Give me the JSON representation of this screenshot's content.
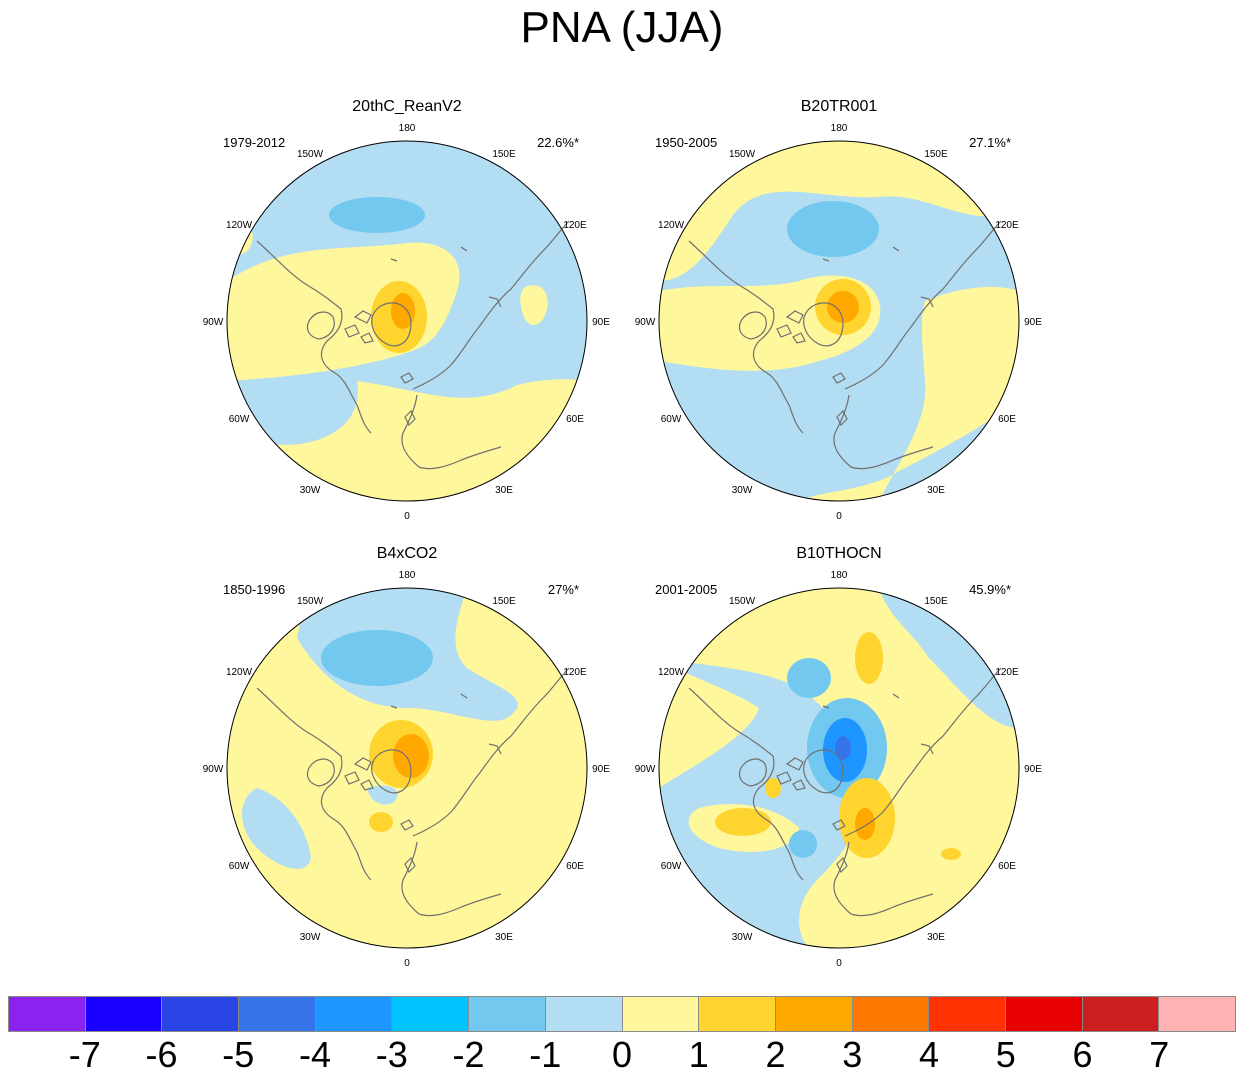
{
  "title": "PNA (JJA)",
  "panels": [
    {
      "name": "20thC_ReanV2",
      "period": "1979-2012",
      "variance": "22.6%*"
    },
    {
      "name": "B20TR001",
      "period": "1950-2005",
      "variance": "27.1%*"
    },
    {
      "name": "B4xCO2",
      "period": "1850-1996",
      "variance": "27%*"
    },
    {
      "name": "B10THOCN",
      "period": "2001-2005",
      "variance": "45.9%*"
    }
  ],
  "lon_labels": [
    "180",
    "150E",
    "120E",
    "90E",
    "60E",
    "30E",
    "0",
    "30W",
    "60W",
    "90W",
    "120W",
    "150W"
  ],
  "colorbar": {
    "colors": [
      "#8a22f0",
      "#1a00ff",
      "#2a45e6",
      "#3574e8",
      "#1e96ff",
      "#00c3ff",
      "#73c8f0",
      "#b3ddf2",
      "#fff79c",
      "#ffd42e",
      "#ffa800",
      "#ff7800",
      "#ff3200",
      "#e60000",
      "#cc1f1f",
      "#ffb3b3"
    ],
    "labels": [
      "-7",
      "-6",
      "-5",
      "-4",
      "-3",
      "-2",
      "-1",
      "0",
      "1",
      "2",
      "3",
      "4",
      "5",
      "6",
      "7"
    ]
  }
}
